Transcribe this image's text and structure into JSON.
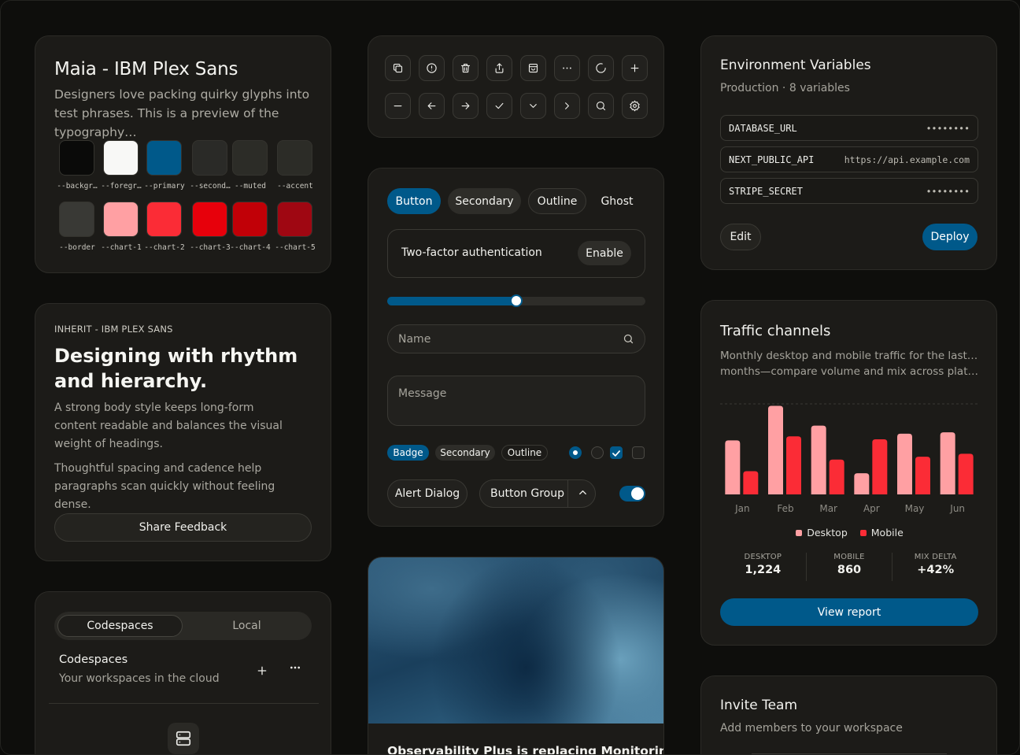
{
  "typography_card": {
    "title": "Maia - IBM Plex Sans",
    "description": "Designers love packing quirky glyphs into test phrases. This is a preview of the typography…",
    "swatches": [
      {
        "label": "--backgr…",
        "color": "#0a0a09"
      },
      {
        "label": "--foregr…",
        "color": "#f8f8f6"
      },
      {
        "label": "--primary",
        "color": "#00598a"
      },
      {
        "label": "--second…",
        "color": "#2a2a27"
      },
      {
        "label": "--muted",
        "color": "#2c2c27"
      },
      {
        "label": "--accent",
        "color": "#2c2c27"
      },
      {
        "label": "--border",
        "color": "#393935"
      },
      {
        "label": "--chart-1",
        "color": "#ffa0a3"
      },
      {
        "label": "--chart-2",
        "color": "#fb2c36"
      },
      {
        "label": "--chart-3",
        "color": "#e7000b"
      },
      {
        "label": "--chart-4",
        "color": "#c10007"
      },
      {
        "label": "--chart-5",
        "color": "#9f0712"
      }
    ]
  },
  "article_card": {
    "eyebrow": "INHERIT - IBM PLEX SANS",
    "heading": "Designing with rhythm and hierarchy.",
    "paragraph_1": "A strong body style keeps long-form content readable and balances the visual weight of headings.",
    "paragraph_2": "Thoughtful spacing and cadence help paragraphs scan quickly without feeling dense.",
    "button": "Share Feedback"
  },
  "workspace_card": {
    "tabs": [
      "Codespaces",
      "Local"
    ],
    "title": "Codespaces",
    "subtitle": "Your workspaces in the cloud",
    "add_icon": "plus-icon",
    "more_icon": "more-horizontal-icon",
    "empty_icon": "server-icon"
  },
  "icon_toolbar": {
    "icons": [
      "copy-icon",
      "alert-circle-icon",
      "trash-icon",
      "share-icon",
      "shopping-bag-icon",
      "more-horizontal-icon",
      "loader-icon",
      "plus-icon",
      "minus-icon",
      "arrow-left-icon",
      "arrow-right-icon",
      "check-icon",
      "chevron-down-icon",
      "chevron-right-icon",
      "search-icon",
      "settings-icon"
    ]
  },
  "controls_card": {
    "buttons": [
      "Button",
      "Secondary",
      "Outline",
      "Ghost"
    ],
    "two_factor": {
      "label": "Two-factor authentication",
      "action": "Enable"
    },
    "slider": {
      "value": 50
    },
    "name_input": {
      "placeholder": "Name"
    },
    "message_input": {
      "placeholder": "Message"
    },
    "badges": [
      "Badge",
      "Secondary",
      "Outline"
    ],
    "radios": [
      {
        "checked": true
      },
      {
        "checked": false
      }
    ],
    "checkboxes": [
      {
        "checked": true
      },
      {
        "checked": false
      }
    ],
    "alert_dialog": "Alert Dialog",
    "button_group": "Button Group",
    "switch": {
      "on": true
    }
  },
  "media_card": {
    "title": "Observability Plus is replacing Monitoring"
  },
  "env_card": {
    "title": "Environment Variables",
    "subtitle": "Production · 8 variables",
    "variables": [
      {
        "key": "DATABASE_URL",
        "value": "••••••••"
      },
      {
        "key": "NEXT_PUBLIC_API",
        "value": "https://api.example.com"
      },
      {
        "key": "STRIPE_SECRET",
        "value": "••••••••"
      }
    ],
    "edit": "Edit",
    "deploy": "Deploy"
  },
  "traffic_card": {
    "title": "Traffic channels",
    "subtitle_line1": "Monthly desktop and mobile traffic for the last six",
    "subtitle_line2": "months—compare volume and mix across platfor…",
    "legend": [
      "Desktop",
      "Mobile"
    ],
    "stats": [
      {
        "label": "DESKTOP",
        "value": "1,224"
      },
      {
        "label": "MOBILE",
        "value": "860"
      },
      {
        "label": "MIX DELTA",
        "value": "+42%"
      }
    ],
    "button": "View report"
  },
  "chart_data": {
    "type": "bar",
    "categories": [
      "Jan",
      "Feb",
      "Mar",
      "Apr",
      "May",
      "Jun"
    ],
    "series": [
      {
        "name": "Desktop",
        "values": [
          186,
          305,
          237,
          73,
          209,
          214
        ],
        "color": "#ffa0a3"
      },
      {
        "name": "Mobile",
        "values": [
          80,
          200,
          120,
          190,
          130,
          140
        ],
        "color": "#fb2c36"
      }
    ],
    "ylim": [
      0,
      320
    ],
    "grid": true,
    "legend_position": "bottom"
  },
  "invite_card": {
    "title": "Invite Team",
    "subtitle": "Add members to your workspace"
  }
}
